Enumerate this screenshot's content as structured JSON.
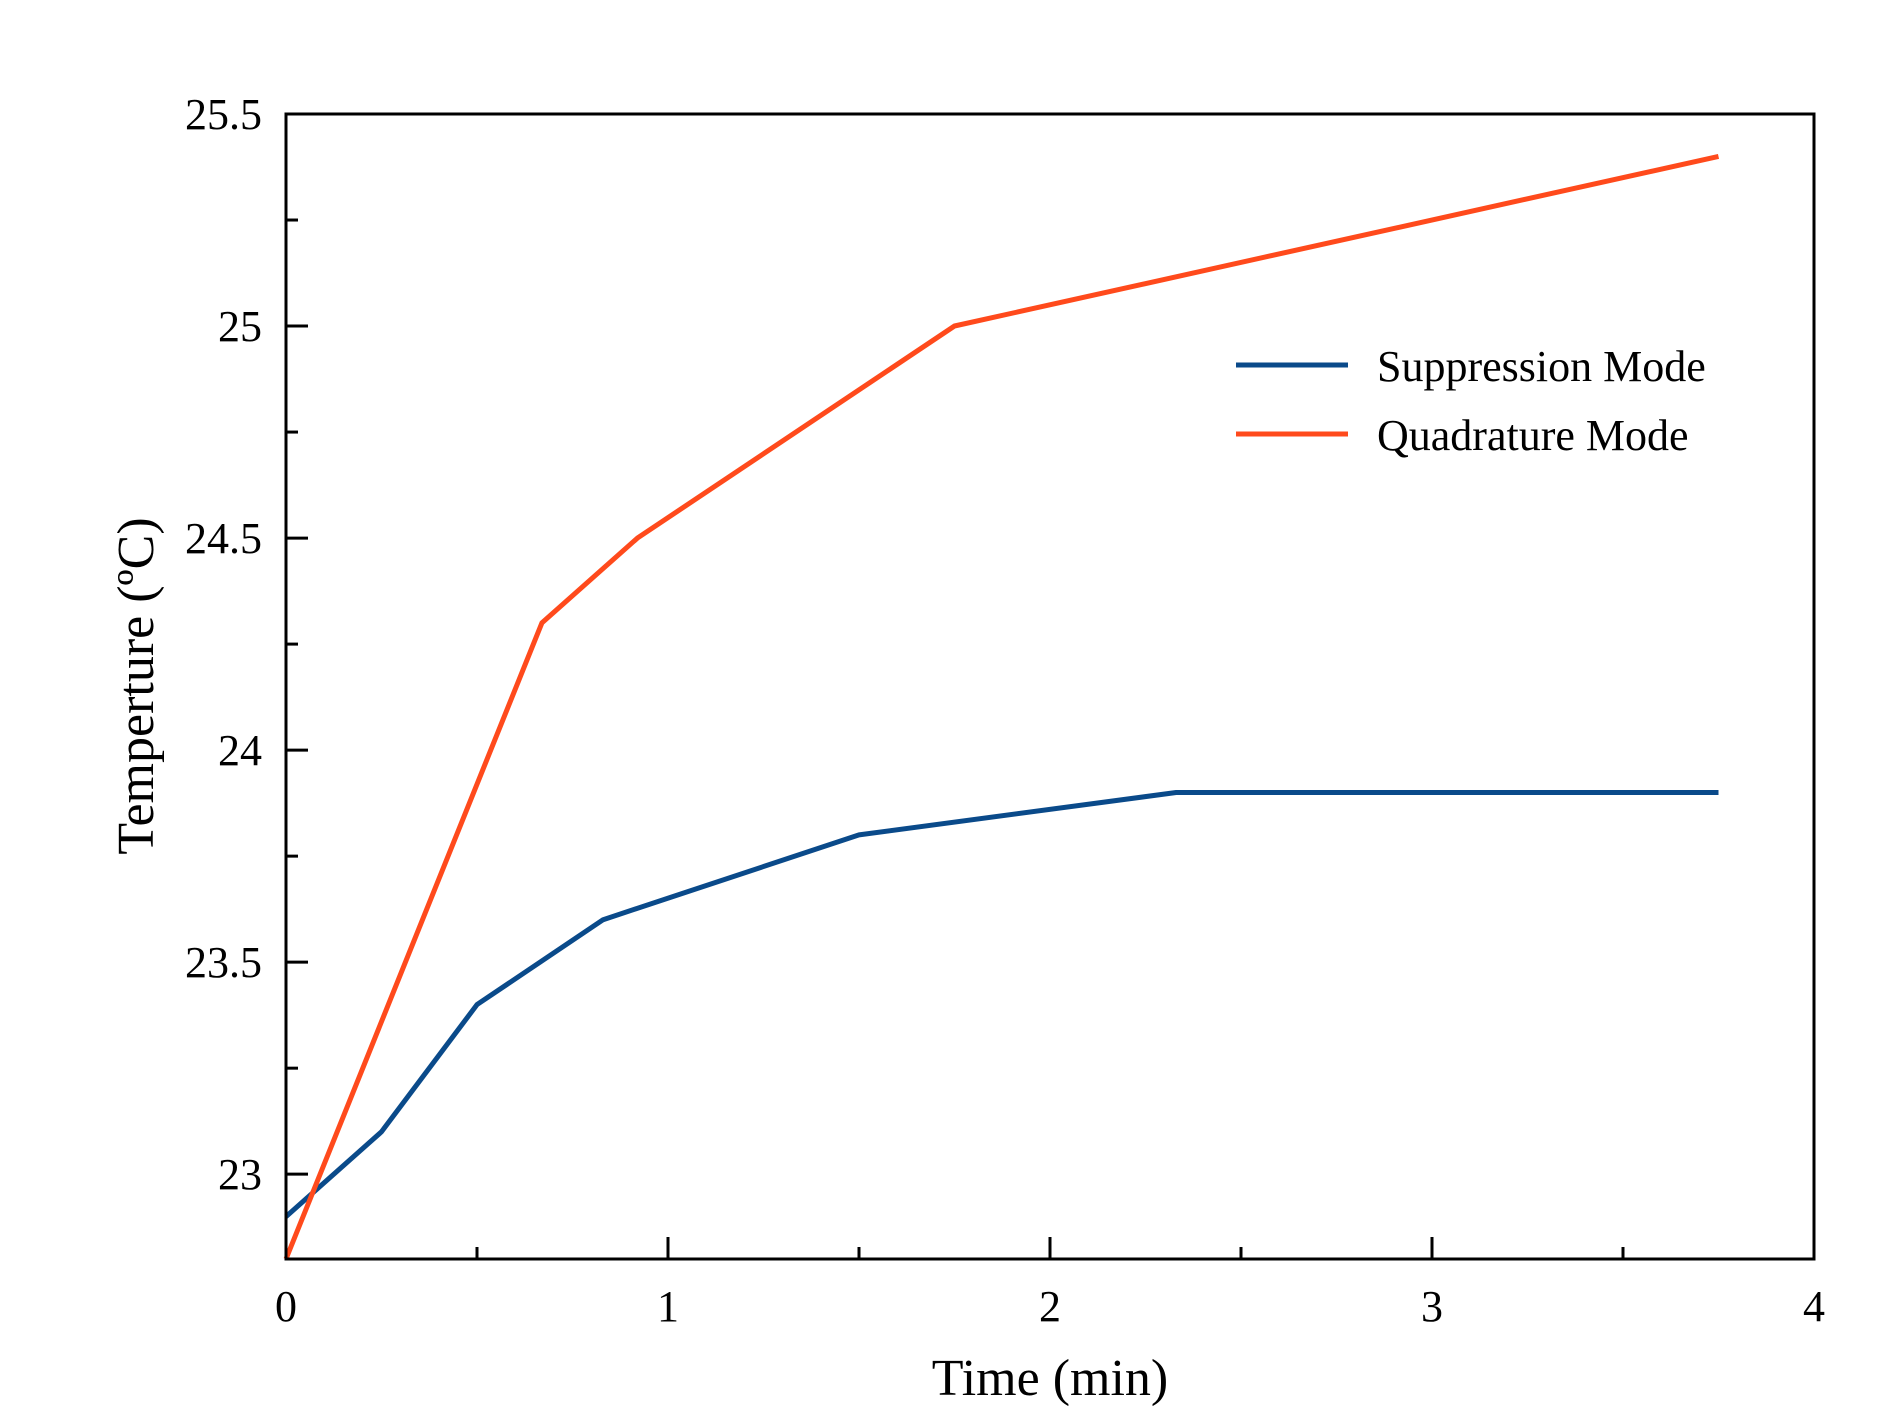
{
  "chart_data": {
    "type": "line",
    "xlabel": "Time (min)",
    "ylabel": "Temperture (ºC)",
    "xlim": [
      0,
      4
    ],
    "ylim": [
      22.8,
      25.5
    ],
    "xticks": [
      0,
      1,
      2,
      3,
      4
    ],
    "xtick_labels": [
      "0",
      "1",
      "2",
      "3",
      "4"
    ],
    "xminor": [
      0.5,
      1.5,
      2.5,
      3.5
    ],
    "yticks": [
      23,
      23.5,
      24,
      24.5,
      25,
      25.5
    ],
    "ytick_labels": [
      "23",
      "23.5",
      "24",
      "24.5",
      "25",
      "25.5"
    ],
    "yminor": [
      23.25,
      23.75,
      24.25,
      24.75,
      25.25
    ],
    "grid": false,
    "legend_position": "upper-right",
    "series": [
      {
        "name": "Suppression Mode",
        "color": "#0a4a8a",
        "x": [
          0,
          0.25,
          0.5,
          0.83,
          1.5,
          2.33,
          3.75
        ],
        "y": [
          22.9,
          23.1,
          23.4,
          23.6,
          23.8,
          23.9,
          23.9
        ]
      },
      {
        "name": "Quadrature Mode",
        "color": "#ff4a1c",
        "x": [
          0,
          0.67,
          0.92,
          1.75,
          3.75
        ],
        "y": [
          22.8,
          24.3,
          24.5,
          25.0,
          25.4
        ]
      }
    ]
  }
}
